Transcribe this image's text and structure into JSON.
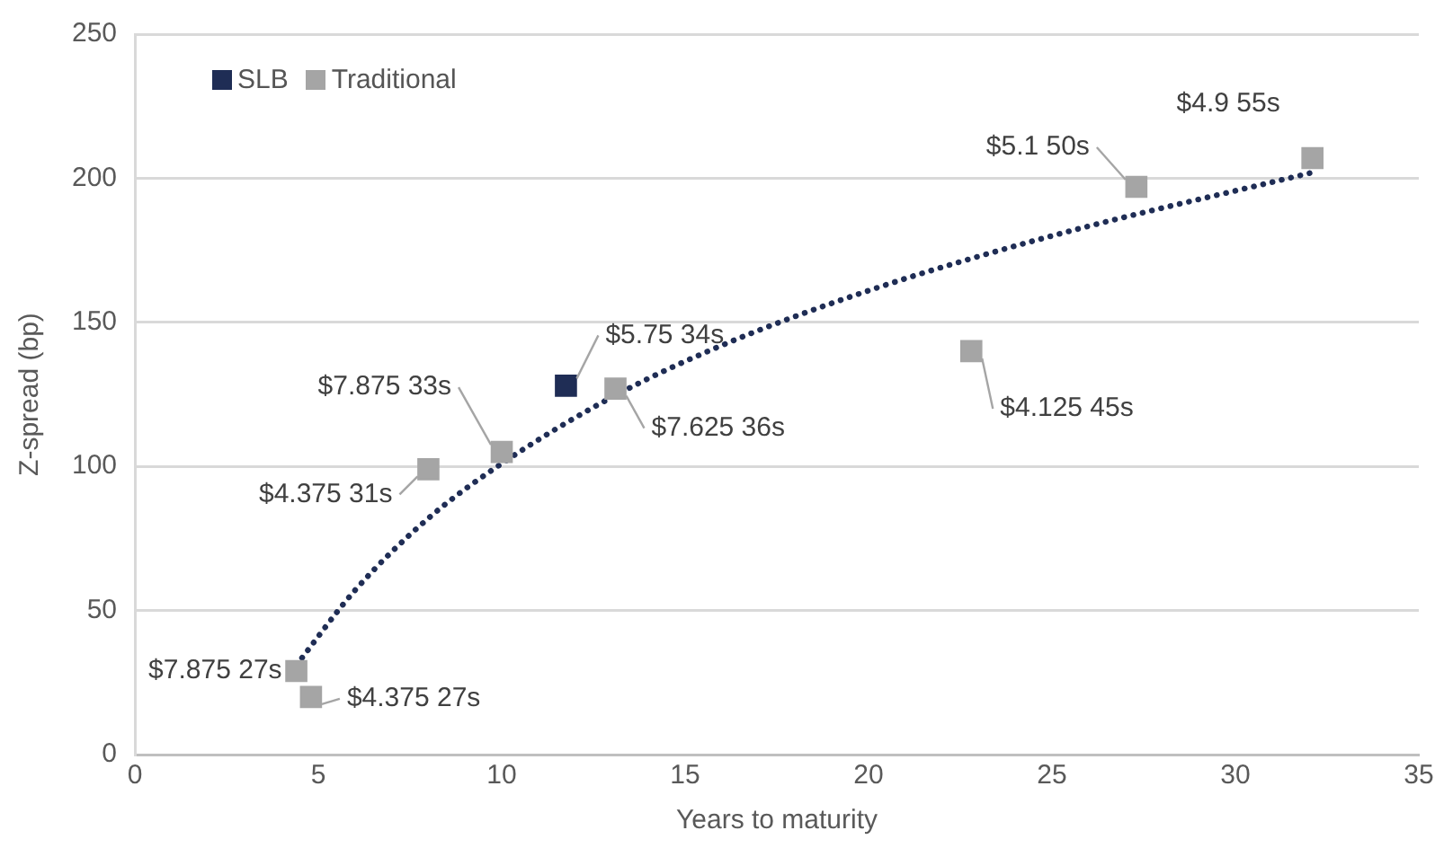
{
  "chart_data": {
    "type": "scatter",
    "xlabel": "Years to maturity",
    "ylabel": "Z-spread (bp)",
    "xlim": [
      0,
      35
    ],
    "xticks": [
      0,
      5,
      10,
      15,
      20,
      25,
      30,
      35
    ],
    "ylim": [
      0,
      250
    ],
    "yticks": [
      0,
      50,
      100,
      150,
      200,
      250
    ],
    "grid": "y",
    "legend": "top left",
    "marker": "square",
    "series": [
      {
        "name": "SLB",
        "color": "#1f2d55",
        "x": [
          11.75
        ],
        "values": [
          128
        ]
      },
      {
        "name": "Traditional",
        "color": "#a5a5a5",
        "x": [
          4.4,
          4.8,
          8.0,
          10.0,
          13.1,
          22.8,
          27.3,
          32.1
        ],
        "values": [
          29,
          20,
          99,
          105,
          127,
          140,
          197,
          207
        ]
      },
      {
        "type": "line",
        "color": "#1f2d55",
        "line_style": "dotted",
        "marker": "none",
        "x": [
          4.4,
          6,
          8,
          10,
          13,
          16,
          20,
          25,
          32.1
        ],
        "values": [
          31,
          57,
          82,
          101,
          124,
          142,
          161,
          180,
          202
        ]
      }
    ],
    "annotations": [
      {
        "text": "$7.875 27s",
        "x": 4.4,
        "y": 29
      },
      {
        "text": "$4.375 27s",
        "x": 4.8,
        "y": 20
      },
      {
        "text": "$4.375 31s",
        "x": 8.0,
        "y": 99
      },
      {
        "text": "$7.875 33s",
        "x": 10.0,
        "y": 105
      },
      {
        "text": "$5.75 34s",
        "x": 11.75,
        "y": 128
      },
      {
        "text": "$7.625 36s",
        "x": 13.1,
        "y": 127
      },
      {
        "text": "$4.125 45s",
        "x": 22.8,
        "y": 140
      },
      {
        "text": "$5.1 50s",
        "x": 27.3,
        "y": 197
      },
      {
        "text": "$4.9 55s",
        "x": 32.1,
        "y": 207
      }
    ]
  }
}
